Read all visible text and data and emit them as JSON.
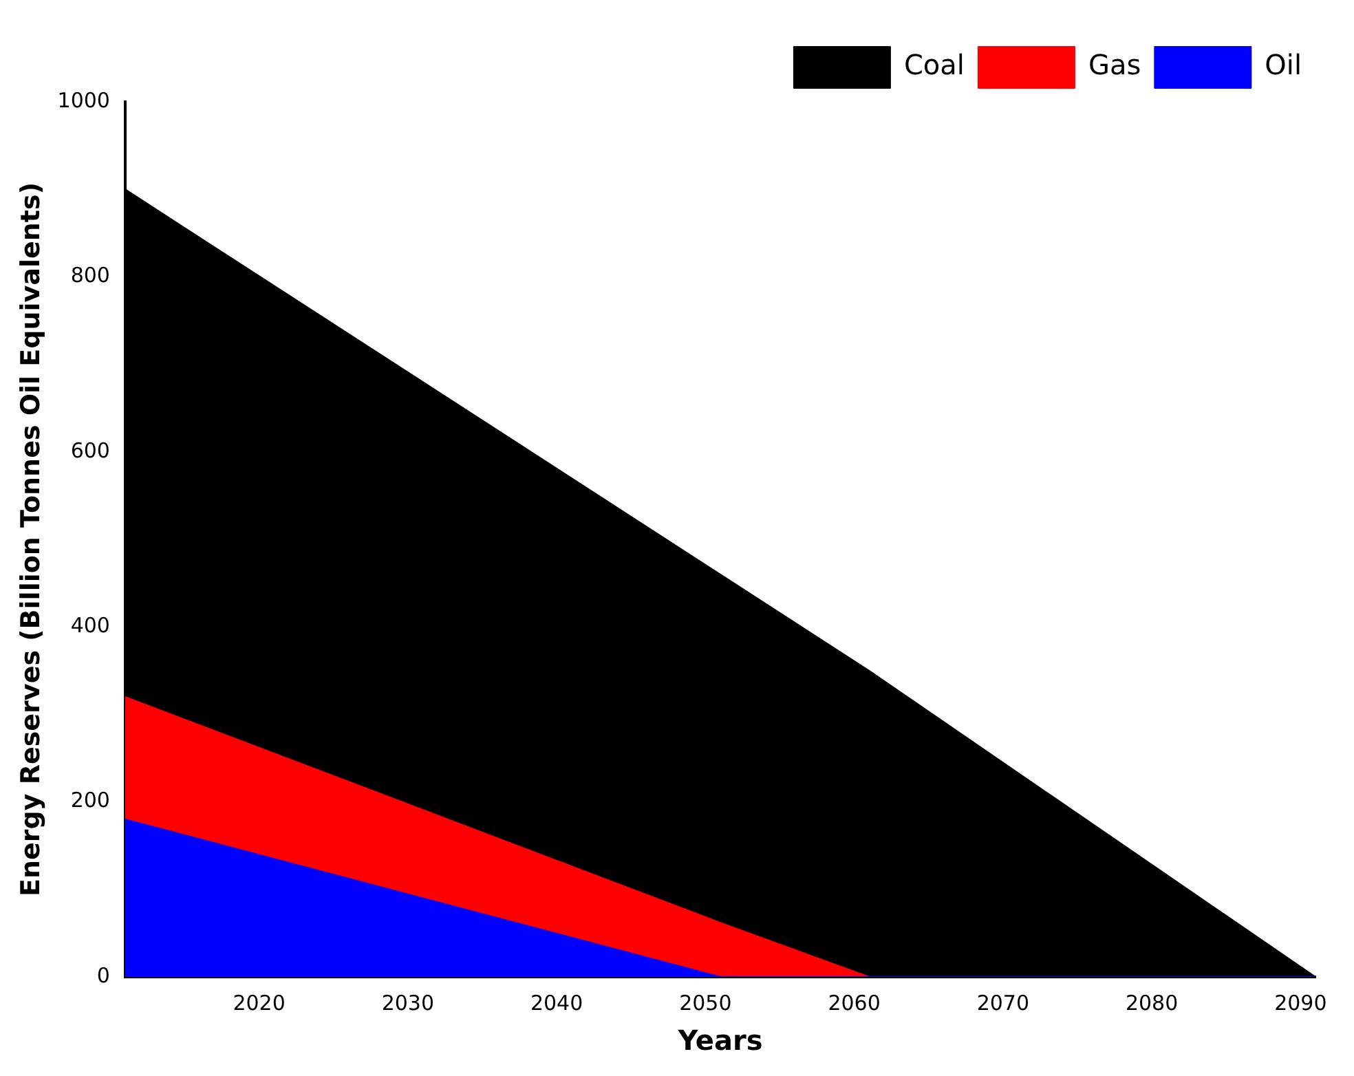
{
  "chart_data": {
    "type": "area",
    "stacked": true,
    "xlabel": "Years",
    "ylabel": "Energy Reserves (Billion Tonnes Oil Equivalents)",
    "x": [
      2011,
      2051,
      2061,
      2091
    ],
    "series": [
      {
        "name": "Oil",
        "color": "#0000ff",
        "values": [
          180,
          0,
          0,
          0
        ]
      },
      {
        "name": "Gas",
        "color": "#ff0000",
        "values": [
          140,
          62,
          0,
          0
        ]
      },
      {
        "name": "Coal",
        "color": "#000000",
        "values": [
          580,
          398,
          350,
          0
        ]
      }
    ],
    "xlim": [
      2011,
      2091
    ],
    "xticks": [
      2020,
      2030,
      2040,
      2050,
      2060,
      2070,
      2080,
      2090
    ],
    "ylim": [
      0,
      1000
    ],
    "yticks": [
      0,
      200,
      400,
      600,
      800,
      1000
    ],
    "grid": false,
    "legend": "top right"
  }
}
